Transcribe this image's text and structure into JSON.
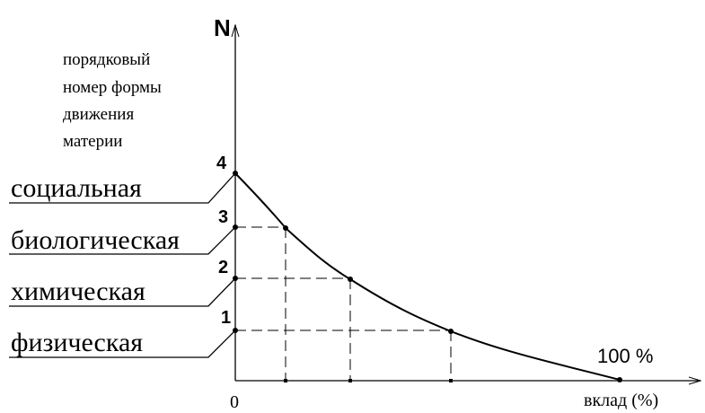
{
  "axes": {
    "y_symbol": "N",
    "y_caption": [
      "порядковый",
      "номер формы",
      "движения",
      "материи"
    ],
    "x_origin": "0",
    "x_caption": "вклад (%)"
  },
  "levels": [
    {
      "n": "1",
      "name": "физическая"
    },
    {
      "n": "2",
      "name": "химическая"
    },
    {
      "n": "3",
      "name": "биологическая"
    },
    {
      "n": "4",
      "name": "социальная"
    }
  ],
  "curve_end_label": "100 %",
  "colors": {
    "ink": "#000000",
    "background": "#ffffff"
  }
}
